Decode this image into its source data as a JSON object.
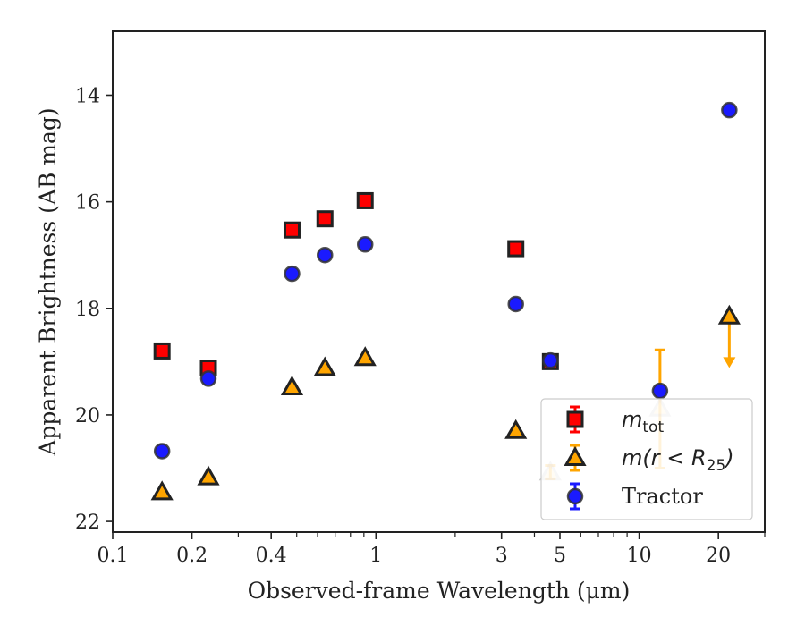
{
  "chart_data": {
    "type": "scatter",
    "title": "",
    "xlabel": "Observed-frame Wavelength (μm)",
    "ylabel": "Apparent Brightness (AB mag)",
    "xscale": "log",
    "xlim": [
      0.1,
      30
    ],
    "ylim": [
      22.2,
      12.8
    ],
    "y_inverted": true,
    "grid": false,
    "legend_position": "lower-right",
    "x_ticks": [
      {
        "value": 0.1,
        "label": "0.1"
      },
      {
        "value": 0.2,
        "label": "0.2"
      },
      {
        "value": 0.4,
        "label": "0.4"
      },
      {
        "value": 1,
        "label": "1"
      },
      {
        "value": 3,
        "label": "3"
      },
      {
        "value": 5,
        "label": "5"
      },
      {
        "value": 10,
        "label": "10"
      },
      {
        "value": 20,
        "label": "20"
      }
    ],
    "y_ticks": [
      {
        "value": 14,
        "label": "14"
      },
      {
        "value": 16,
        "label": "16"
      },
      {
        "value": 18,
        "label": "18"
      },
      {
        "value": 20,
        "label": "20"
      },
      {
        "value": 22,
        "label": "22"
      }
    ],
    "series": [
      {
        "name": "m_tot",
        "legend": {
          "base": "m",
          "sub": "tot",
          "suffix": ""
        },
        "marker": "square",
        "color": "#ff0000",
        "edge_color": "#222222",
        "points": [
          {
            "x": 0.154,
            "y": 18.8
          },
          {
            "x": 0.231,
            "y": 19.12
          },
          {
            "x": 0.48,
            "y": 16.53
          },
          {
            "x": 0.64,
            "y": 16.32
          },
          {
            "x": 0.91,
            "y": 15.98
          },
          {
            "x": 3.4,
            "y": 16.88
          },
          {
            "x": 4.6,
            "y": 19.0
          }
        ]
      },
      {
        "name": "m(r < R25)",
        "legend": {
          "base": "m(r < R",
          "sub": "25",
          "suffix": ")"
        },
        "marker": "triangle",
        "color": "#ffa500",
        "edge_color": "#222222",
        "points": [
          {
            "x": 0.154,
            "y": 21.45
          },
          {
            "x": 0.231,
            "y": 21.17
          },
          {
            "x": 0.48,
            "y": 19.48
          },
          {
            "x": 0.64,
            "y": 19.12
          },
          {
            "x": 0.91,
            "y": 18.93
          },
          {
            "x": 3.4,
            "y": 20.3
          },
          {
            "x": 4.6,
            "y": 21.08,
            "faded": true,
            "errorbar": [
              20.95,
              21.2
            ]
          },
          {
            "x": 12,
            "y": 19.88,
            "faded": true,
            "errorbar": [
              18.78,
              21.0
            ]
          },
          {
            "x": 22,
            "y": 18.15,
            "upper_limit_to": 19.05
          }
        ]
      },
      {
        "name": "Tractor",
        "legend": {
          "base": "Tractor",
          "sub": "",
          "suffix": ""
        },
        "marker": "circle",
        "color": "#1a1aff",
        "edge_color": "#333333",
        "points": [
          {
            "x": 0.154,
            "y": 20.68
          },
          {
            "x": 0.231,
            "y": 19.32
          },
          {
            "x": 0.48,
            "y": 17.35
          },
          {
            "x": 0.64,
            "y": 17.0
          },
          {
            "x": 0.91,
            "y": 16.8
          },
          {
            "x": 3.4,
            "y": 17.92
          },
          {
            "x": 4.6,
            "y": 18.98
          },
          {
            "x": 12,
            "y": 19.55
          },
          {
            "x": 22,
            "y": 14.28
          }
        ]
      }
    ]
  }
}
